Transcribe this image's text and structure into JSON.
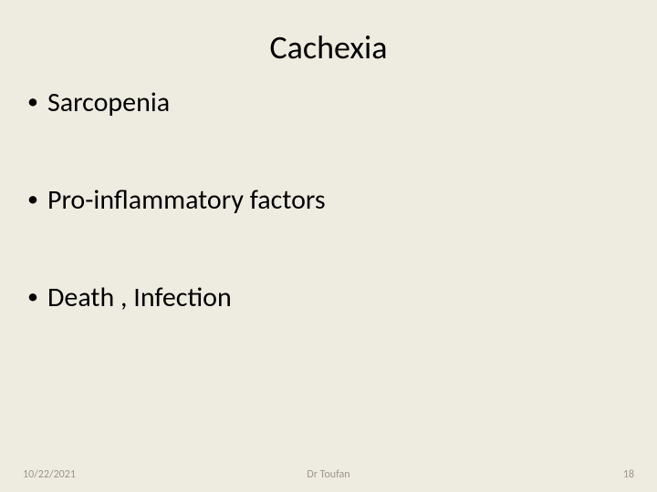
{
  "slide": {
    "title": "Cachexia",
    "title_fontsize": 36,
    "bullets": [
      {
        "text": "Sarcopenia"
      },
      {
        "text": "Pro-inflammatory factors"
      },
      {
        "text": "Death , Infection"
      }
    ],
    "bullet_fontsize": 30,
    "background_color": "#eeece1",
    "text_color": "#000000",
    "footer_color": "#9c9788"
  },
  "footer": {
    "date": "10/22/2021",
    "author": "Dr Toufan",
    "page_number": "18"
  }
}
